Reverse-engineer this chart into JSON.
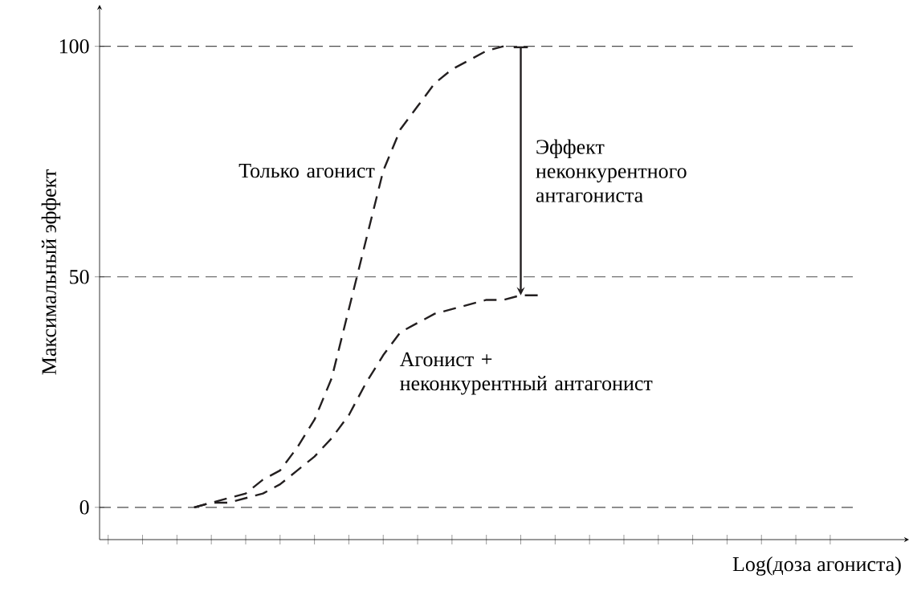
{
  "chart_data": {
    "type": "line",
    "xlabel": "Log(доза агониста)",
    "ylabel": "Максимальный эффект",
    "categories": [
      null,
      null,
      null,
      null,
      null,
      null,
      null,
      null,
      null,
      null,
      null,
      null,
      null,
      null,
      null,
      null,
      null,
      null,
      null,
      null,
      null,
      null,
      null,
      null,
      null,
      null,
      null,
      null,
      null,
      null,
      null,
      null,
      null,
      null,
      null,
      null,
      null,
      null,
      null,
      null,
      null,
      null,
      null,
      null
    ],
    "ylim": [
      -7,
      109
    ],
    "yticks": [
      0,
      50,
      100
    ],
    "grid": "y",
    "tick_labels": "y",
    "marker": "none",
    "series": [
      {
        "name": "Только агонист",
        "color": "#231f20",
        "line_style": "dashed",
        "values": [
          null,
          null,
          null,
          null,
          null,
          0,
          1,
          2,
          3,
          6,
          8,
          13,
          19,
          28,
          43,
          58,
          73,
          82,
          87,
          92,
          95,
          97,
          99,
          100,
          null,
          null,
          null,
          null,
          null,
          null,
          null,
          null,
          null,
          null,
          null,
          null,
          null,
          null,
          null,
          null,
          null,
          null,
          null,
          null
        ]
      },
      {
        "name": "Агонист +\nнеконкурентный антагонист",
        "color": "#231f20",
        "line_style": "dashed",
        "values": [
          null,
          null,
          null,
          null,
          null,
          0,
          1,
          1,
          2,
          3,
          5,
          8,
          11,
          15,
          20,
          27,
          33,
          38,
          40,
          42,
          43,
          44,
          45,
          45,
          46,
          46,
          null,
          null,
          null,
          null,
          null,
          null,
          null,
          null,
          null,
          null,
          null,
          null,
          null,
          null,
          null,
          null,
          null,
          null
        ]
      }
    ],
    "annotations": [
      "Эффект неконкурентного антагониста"
    ]
  }
}
